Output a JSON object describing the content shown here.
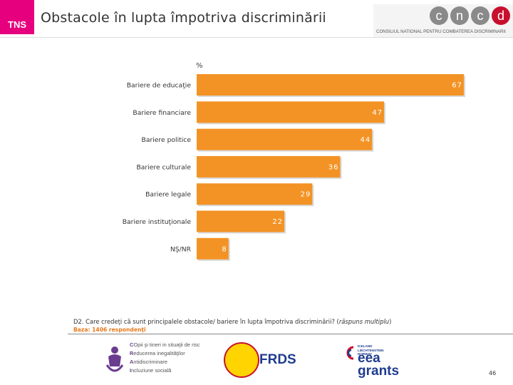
{
  "header": {
    "logo_text": "TNS",
    "title": "Obstacole în lupta împotriva discriminării",
    "partner_letters": [
      "c",
      "n",
      "c",
      "d"
    ],
    "partner_subtitle": "CONSILIUL NATIONAL PENTRU COMBATEREA DISCRIMINARII"
  },
  "chart_data": {
    "type": "bar",
    "orientation": "horizontal",
    "unit_label": "%",
    "categories": [
      "Bariere de educaţie",
      "Bariere financiare",
      "Bariere politice",
      "Bariere culturale",
      "Bariere legale",
      "Bariere instituţionale",
      "NŞ/NR"
    ],
    "values": [
      67,
      47,
      44,
      36,
      29,
      22,
      8
    ],
    "xlim": [
      0,
      67
    ],
    "bar_color": "#f39325",
    "label_color": "#ffffff"
  },
  "footnote": {
    "question_prefix": "D2. Care credeţi că sunt principalele obstacole/ bariere în lupta împotriva discriminării? (",
    "question_italic": "răspuns multiplu",
    "question_suffix": ")",
    "base": "Baza: 1406 respondenţi"
  },
  "footer": {
    "partner1_lines": [
      "COpii şi tineri in situaţii de risc",
      "Reducerea inegalităţilor",
      "Antidiscriminare",
      "Incluziune socială"
    ],
    "partner2_name": "FRDS",
    "partner3_small": [
      "ICELAND",
      "LIECHTENSTEIN",
      "NORWAY"
    ],
    "partner3_lines": [
      "eea",
      "grants"
    ],
    "page_number": "46"
  },
  "colors": {
    "tns_magenta": "#e6007e",
    "bar_orange": "#f39325",
    "base_orange": "#e8781a",
    "cncd_red": "#c8102e"
  }
}
